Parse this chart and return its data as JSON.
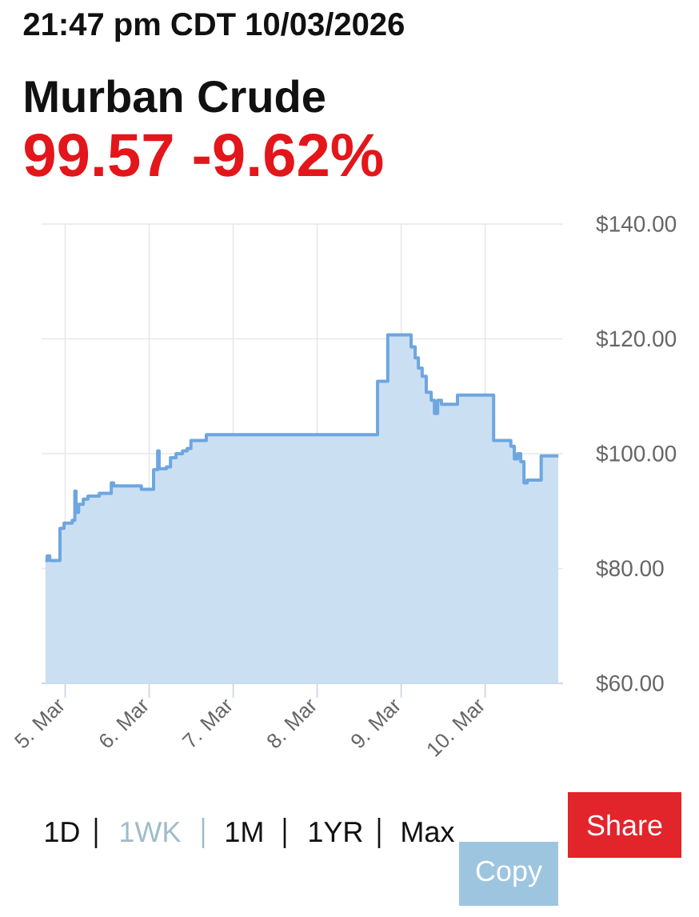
{
  "chart_data": {
    "type": "area",
    "title": "Murban Crude",
    "subtitle": "99.57 -9.62%",
    "annotations": [
      "21:47 pm CDT 10/03/2026",
      "1D",
      "1WK",
      "1M",
      "1YR",
      "Max",
      "Share",
      "Copy"
    ],
    "x": [
      "2026-03-04T18:20",
      "2026-03-04T18:50",
      "2026-03-04T18:50",
      "2026-03-04T19:35",
      "2026-03-04T19:35",
      "2026-03-04T22:30",
      "2026-03-04T22:30",
      "2026-03-04T23:40",
      "2026-03-04T23:40",
      "2026-03-05T02:00",
      "2026-03-05T02:00",
      "2026-03-05T02:45",
      "2026-03-05T02:45",
      "2026-03-05T03:05",
      "2026-03-05T03:05",
      "2026-03-05T03:50",
      "2026-03-05T03:50",
      "2026-03-05T05:10",
      "2026-03-05T05:10",
      "2026-03-05T06:30",
      "2026-03-05T06:30",
      "2026-03-05T09:45",
      "2026-03-05T09:45",
      "2026-03-05T13:10",
      "2026-03-05T13:10",
      "2026-03-05T13:50",
      "2026-03-05T13:50",
      "2026-03-05T21:45",
      "2026-03-05T21:45",
      "2026-03-06T01:15",
      "2026-03-06T01:15",
      "2026-03-06T02:25",
      "2026-03-06T02:25",
      "2026-03-06T02:50",
      "2026-03-06T02:50",
      "2026-03-06T04:55",
      "2026-03-06T04:55",
      "2026-03-06T06:05",
      "2026-03-06T06:05",
      "2026-03-06T07:40",
      "2026-03-06T07:40",
      "2026-03-06T09:30",
      "2026-03-06T09:30",
      "2026-03-06T10:50",
      "2026-03-06T10:50",
      "2026-03-06T11:55",
      "2026-03-06T11:55",
      "2026-03-06T16:20",
      "2026-03-06T16:20",
      "2026-03-08T17:15",
      "2026-03-08T17:15",
      "2026-03-08T20:10",
      "2026-03-08T20:10",
      "2026-03-09T02:50",
      "2026-03-09T02:50",
      "2026-03-09T04:00",
      "2026-03-09T04:00",
      "2026-03-09T04:55",
      "2026-03-09T04:55",
      "2026-03-09T06:00",
      "2026-03-09T06:00",
      "2026-03-09T07:10",
      "2026-03-09T07:10",
      "2026-03-09T08:35",
      "2026-03-09T08:35",
      "2026-03-09T09:30",
      "2026-03-09T09:30",
      "2026-03-09T10:25",
      "2026-03-09T10:25",
      "2026-03-09T11:30",
      "2026-03-09T11:30",
      "2026-03-09T16:05",
      "2026-03-09T16:05",
      "2026-03-10T02:25",
      "2026-03-10T02:25",
      "2026-03-10T07:20",
      "2026-03-10T07:20",
      "2026-03-10T08:20",
      "2026-03-10T08:20",
      "2026-03-10T09:15",
      "2026-03-10T09:15",
      "2026-03-10T10:10",
      "2026-03-10T10:10",
      "2026-03-10T11:05",
      "2026-03-10T11:05",
      "2026-03-10T12:00",
      "2026-03-10T12:00",
      "2026-03-10T16:00",
      "2026-03-10T16:00",
      "2026-03-10T20:55"
    ],
    "series": [
      {
        "color": "#6ea6df",
        "values": [
          81.4,
          81.4,
          82.2,
          82.2,
          81.4,
          81.4,
          87.0,
          87.0,
          87.9,
          87.9,
          88.4,
          88.4,
          93.5,
          93.5,
          89.8,
          89.8,
          91.2,
          91.2,
          92.1,
          92.1,
          92.6,
          92.6,
          93.1,
          93.1,
          94.9,
          94.9,
          94.4,
          94.4,
          93.8,
          93.8,
          97.2,
          97.2,
          100.5,
          100.5,
          97.4,
          97.4,
          97.7,
          97.7,
          99.3,
          99.3,
          100.0,
          100.0,
          100.5,
          100.5,
          100.9,
          100.9,
          102.3,
          102.3,
          103.3,
          103.3,
          112.6,
          112.6,
          120.7,
          120.7,
          118.6,
          118.6,
          116.7,
          116.7,
          114.9,
          114.9,
          113.5,
          113.5,
          110.7,
          110.7,
          109.3,
          109.3,
          107.0,
          107.0,
          109.3,
          109.3,
          108.6,
          108.6,
          110.2,
          110.2,
          102.3,
          102.3,
          101.3,
          101.3,
          99.1,
          99.1,
          100.0,
          100.0,
          98.6,
          98.6,
          94.9,
          94.9,
          95.4,
          95.4,
          99.6,
          99.6
        ]
      }
    ],
    "xlim": [
      "2026-03-04T17:15",
      "2026-03-10T22:15"
    ],
    "xticks": [
      {
        "value": "2026-03-05",
        "label": "5. Mar"
      },
      {
        "value": "2026-03-06",
        "label": "6. Mar"
      },
      {
        "value": "2026-03-07",
        "label": "7. Mar"
      },
      {
        "value": "2026-03-08",
        "label": "8. Mar"
      },
      {
        "value": "2026-03-09",
        "label": "9. Mar"
      },
      {
        "value": "2026-03-10",
        "label": "10. Mar"
      }
    ],
    "ylim": [
      60,
      140
    ],
    "yticks": [
      {
        "value": 60,
        "label": "$60.00"
      },
      {
        "value": 80,
        "label": "$80.00"
      },
      {
        "value": 100,
        "label": "$100.00"
      },
      {
        "value": 120,
        "label": "$120.00"
      },
      {
        "value": 140,
        "label": "$140.00"
      }
    ],
    "grid": true
  }
}
